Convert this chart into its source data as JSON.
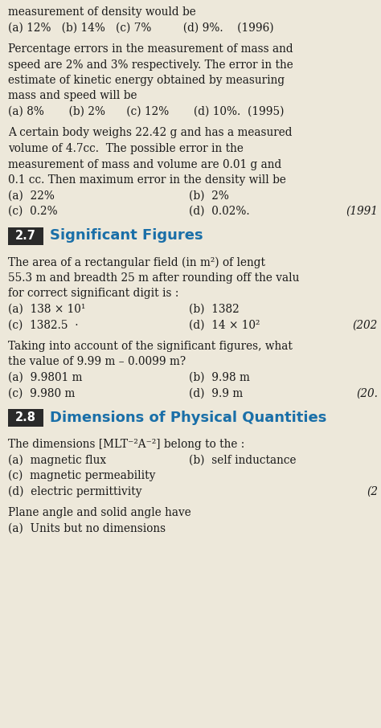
{
  "bg_color": "#ede8da",
  "text_color": "#1a1a1a",
  "section_box_color": "#2a2a2a",
  "section_text_color": "#1a6fa8",
  "lines": [
    {
      "type": "body",
      "text": "measurement of density would be"
    },
    {
      "type": "options_inline",
      "text": "(a) 12%   (b) 14%   (c) 7%         (d) 9%.    (1996)"
    },
    {
      "type": "blank_small"
    },
    {
      "type": "body",
      "text": "Percentage errors in the measurement of mass and"
    },
    {
      "type": "body",
      "text": "speed are 2% and 3% respectively. The error in the"
    },
    {
      "type": "body",
      "text": "estimate of kinetic energy obtained by measuring"
    },
    {
      "type": "body",
      "text": "mass and speed will be"
    },
    {
      "type": "options_inline",
      "text": "(a) 8%       (b) 2%      (c) 12%       (d) 10%.  (1995)"
    },
    {
      "type": "blank_small"
    },
    {
      "type": "body",
      "text": "A certain body weighs 22.42 g and has a measured"
    },
    {
      "type": "body",
      "text": "volume of 4.7cc.  The possible error in the"
    },
    {
      "type": "body",
      "text": "measurement of mass and volume are 0.01 g and"
    },
    {
      "type": "body",
      "text": "0.1 cc. Then maximum error in the density will be"
    },
    {
      "type": "options_2col",
      "col1": "(a)  22%",
      "col2": "(b)  2%",
      "year": ""
    },
    {
      "type": "options_2col_year",
      "col1": "(c)  0.2%",
      "col2": "(d)  0.02%.",
      "year": "(1991"
    },
    {
      "type": "blank_small"
    },
    {
      "type": "section",
      "number": "2.7",
      "title": "Significant Figures"
    },
    {
      "type": "blank_small"
    },
    {
      "type": "body",
      "text": "The area of a rectangular field (in m²) of lengt"
    },
    {
      "type": "body",
      "text": "55.3 m and breadth 25 m after rounding off the valu"
    },
    {
      "type": "body",
      "text": "for correct significant digit is :"
    },
    {
      "type": "options_2col",
      "col1": "(a)  138 × 10¹",
      "col2": "(b)  1382",
      "year": ""
    },
    {
      "type": "options_2col_year",
      "col1": "(c)  1382.5  ·",
      "col2": "(d)  14 × 10²",
      "year": "(202"
    },
    {
      "type": "blank_small"
    },
    {
      "type": "body",
      "text": "Taking into account of the significant figures, what"
    },
    {
      "type": "body",
      "text": "the value of 9.99 m – 0.0099 m?"
    },
    {
      "type": "options_2col",
      "col1": "(a)  9.9801 m",
      "col2": "(b)  9.98 m",
      "year": ""
    },
    {
      "type": "options_2col_year",
      "col1": "(c)  9.980 m",
      "col2": "(d)  9.9 m",
      "year": "(20."
    },
    {
      "type": "blank_small"
    },
    {
      "type": "section",
      "number": "2.8",
      "title": "Dimensions of Physical Quantities"
    },
    {
      "type": "blank_small"
    },
    {
      "type": "body",
      "text": "The dimensions [MLT⁻²A⁻²] belong to the :"
    },
    {
      "type": "options_2col",
      "col1": "(a)  magnetic flux",
      "col2": "(b)  self inductance",
      "year": ""
    },
    {
      "type": "options_1col",
      "text": "(c)  magnetic permeability"
    },
    {
      "type": "options_1col_year",
      "text": "(d)  electric permittivity",
      "year": "(2"
    },
    {
      "type": "blank_small"
    },
    {
      "type": "body",
      "text": "Plane angle and solid angle have"
    },
    {
      "type": "options_1col",
      "text": "(a)  Units but no dimensions"
    }
  ],
  "font_size_body": 9.8,
  "font_size_section_num": 10.5,
  "font_size_section_title": 13.0
}
